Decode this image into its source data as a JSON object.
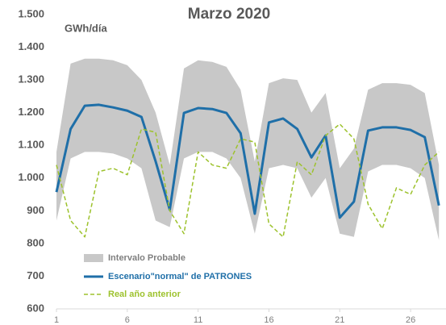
{
  "chart_data": {
    "type": "line",
    "title": "Marzo 2020",
    "y_label": "GWh/día",
    "x": [
      1,
      2,
      3,
      4,
      5,
      6,
      7,
      8,
      9,
      10,
      11,
      12,
      13,
      14,
      15,
      16,
      17,
      18,
      19,
      20,
      21,
      22,
      23,
      24,
      25,
      26,
      27,
      28
    ],
    "xlim": [
      1,
      28.5
    ],
    "xticks": [
      1,
      6,
      11,
      16,
      21,
      26
    ],
    "ylim": [
      600,
      1500
    ],
    "yticks": [
      {
        "value": 600,
        "label": "600"
      },
      {
        "value": 700,
        "label": "700"
      },
      {
        "value": 800,
        "label": "800"
      },
      {
        "value": 900,
        "label": "900"
      },
      {
        "value": 1000,
        "label": "1.000"
      },
      {
        "value": 1100,
        "label": "1.100"
      },
      {
        "value": 1200,
        "label": "1.200"
      },
      {
        "value": 1300,
        "label": "1.300"
      },
      {
        "value": 1400,
        "label": "1.400"
      },
      {
        "value": 1500,
        "label": "1.500"
      }
    ],
    "band": {
      "name": "Intervalo Probable",
      "color": "#c8c8c8",
      "upper": [
        1080,
        1350,
        1365,
        1365,
        1360,
        1345,
        1300,
        1200,
        1040,
        1335,
        1360,
        1355,
        1340,
        1270,
        1050,
        1290,
        1305,
        1300,
        1200,
        1260,
        1030,
        1090,
        1270,
        1290,
        1290,
        1285,
        1260,
        1040
      ],
      "lower": [
        870,
        1060,
        1080,
        1080,
        1075,
        1060,
        1030,
        870,
        850,
        1060,
        1080,
        1080,
        1060,
        1000,
        830,
        1030,
        1040,
        1030,
        940,
        1000,
        830,
        820,
        1020,
        1040,
        1040,
        1030,
        1000,
        810
      ]
    },
    "series": [
      {
        "name": "Escenario\"normal\" de PATRONES",
        "color": "#1f6fa8",
        "dash": false,
        "values": [
          957,
          1150,
          1221,
          1224,
          1216,
          1206,
          1187,
          1051,
          903,
          1199,
          1214,
          1211,
          1199,
          1137,
          891,
          1170,
          1182,
          1150,
          1063,
          1130,
          879,
          928,
          1145,
          1155,
          1155,
          1147,
          1125,
          916
        ]
      },
      {
        "name": "Real año anterior",
        "color": "#9dc22d",
        "dash": true,
        "values": [
          1040,
          870,
          820,
          1020,
          1030,
          1010,
          1150,
          1140,
          900,
          830,
          1080,
          1040,
          1030,
          1120,
          1110,
          860,
          820,
          1050,
          1010,
          1130,
          1165,
          1120,
          920,
          845,
          970,
          950,
          1040,
          1080
        ]
      }
    ]
  }
}
